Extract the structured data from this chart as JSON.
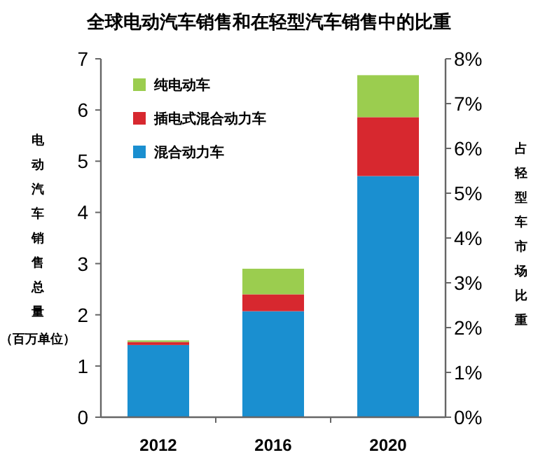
{
  "chart_data": {
    "type": "bar",
    "stacked": true,
    "title": "全球电动汽车销售和在轻型汽车销售中的比重",
    "ylabel": "电动汽车销售总量（百万单位）",
    "y2label": "占轻型车市场比重",
    "categories": [
      "2012",
      "2016",
      "2020"
    ],
    "series": [
      {
        "name": "混合动力车",
        "color": "#1a8fd0",
        "values": [
          1.41,
          2.07,
          4.71
        ]
      },
      {
        "name": "插电式混合动力车",
        "color": "#d7282f",
        "values": [
          0.06,
          0.33,
          1.15
        ]
      },
      {
        "name": "纯电动车",
        "color": "#9bcd4f",
        "values": [
          0.03,
          0.5,
          0.82
        ]
      }
    ],
    "ylim": [
      0,
      7
    ],
    "yticks": [
      0,
      1,
      2,
      3,
      4,
      5,
      6,
      7
    ],
    "y2lim": [
      0,
      8
    ],
    "y2ticks": [
      {
        "value": 0,
        "label": "0%"
      },
      {
        "value": 1,
        "label": "1%"
      },
      {
        "value": 2,
        "label": "2%"
      },
      {
        "value": 3,
        "label": "3%"
      },
      {
        "value": 4,
        "label": "4%"
      },
      {
        "value": 5,
        "label": "5%"
      },
      {
        "value": 6,
        "label": "6%"
      },
      {
        "value": 7,
        "label": "7%"
      },
      {
        "value": 8,
        "label": "8%"
      }
    ],
    "legend": "top left",
    "grid": false
  }
}
